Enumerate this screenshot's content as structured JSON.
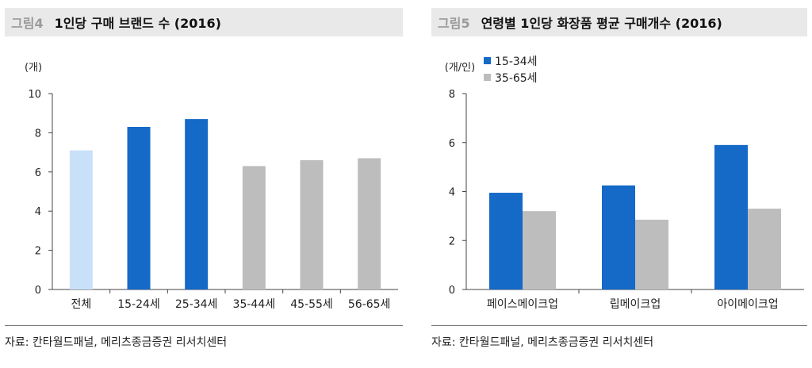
{
  "charts": [
    {
      "fig_label": "그림4",
      "title": "1인당 구매 브랜드 수 (2016)",
      "source": "자료: 칸타월드패널, 메리츠종금증권 리서치센터",
      "chart_data": {
        "type": "bar",
        "unit": "(개)",
        "categories": [
          "전체",
          "15-24세",
          "25-34세",
          "35-44세",
          "45-55세",
          "56-65세"
        ],
        "values": [
          7.1,
          8.3,
          8.7,
          6.3,
          6.6,
          6.7
        ],
        "bar_colors": [
          "#c9e1f8",
          "#1569c7",
          "#1569c7",
          "#bdbdbd",
          "#bdbdbd",
          "#bdbdbd"
        ],
        "yticks": [
          "0",
          "2",
          "4",
          "6",
          "8",
          "10"
        ],
        "ylim": [
          0,
          10
        ],
        "grid": false
      }
    },
    {
      "fig_label": "그림5",
      "title": "연령별 1인당 화장품 평균 구매개수 (2016)",
      "source": "자료: 칸타월드패널, 메리츠종금증권 리서치센터",
      "chart_data": {
        "type": "bar",
        "unit": "(개/인)",
        "categories": [
          "페이스메이크업",
          "립메이크업",
          "아이메이크업"
        ],
        "series": [
          {
            "name": "15-34세",
            "color": "#1569c7",
            "values": [
              3.95,
              4.25,
              5.9
            ]
          },
          {
            "name": "35-65세",
            "color": "#bdbdbd",
            "values": [
              3.2,
              2.85,
              3.3
            ]
          }
        ],
        "yticks": [
          "0",
          "2",
          "4",
          "6",
          "8"
        ],
        "ylim": [
          0,
          8
        ],
        "legend": "top-left",
        "grid": false
      }
    }
  ]
}
